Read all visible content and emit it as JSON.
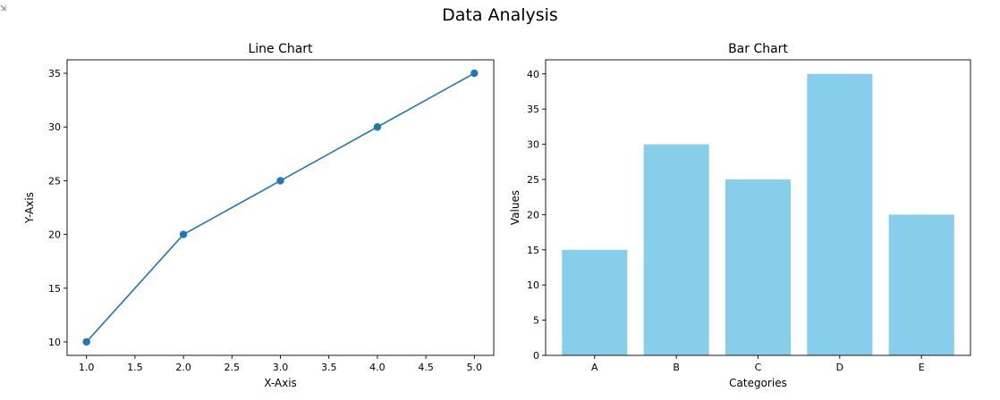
{
  "figure": {
    "title": "Data Analysis",
    "corner_icon": "output-indicator-icon",
    "corner_glyph": "⇲"
  },
  "chart_data": [
    {
      "type": "line",
      "title": "Line Chart",
      "xlabel": "X-Axis",
      "ylabel": "Y-Axis",
      "x": [
        1,
        2,
        3,
        4,
        5
      ],
      "series": [
        {
          "values": [
            10,
            20,
            25,
            30,
            35
          ],
          "color": "#1f77b4",
          "marker": "circle"
        }
      ],
      "xlim": [
        0.8,
        5.2
      ],
      "ylim": [
        8.75,
        36.25
      ],
      "xticks": [
        1.0,
        1.5,
        2.0,
        2.5,
        3.0,
        3.5,
        4.0,
        4.5,
        5.0
      ],
      "xtick_labels": [
        "1.0",
        "1.5",
        "2.0",
        "2.5",
        "3.0",
        "3.5",
        "4.0",
        "4.5",
        "5.0"
      ],
      "yticks": [
        10,
        15,
        20,
        25,
        30,
        35
      ],
      "ytick_labels": [
        "10",
        "15",
        "20",
        "25",
        "30",
        "35"
      ],
      "grid": false,
      "legend": false
    },
    {
      "type": "bar",
      "title": "Bar Chart",
      "xlabel": "Categories",
      "ylabel": "Values",
      "categories": [
        "A",
        "B",
        "C",
        "D",
        "E"
      ],
      "values": [
        15,
        30,
        25,
        40,
        20
      ],
      "color": "#87ceeb",
      "ylim": [
        0,
        42
      ],
      "yticks": [
        0,
        5,
        10,
        15,
        20,
        25,
        30,
        35,
        40
      ],
      "ytick_labels": [
        "0",
        "5",
        "10",
        "15",
        "20",
        "25",
        "30",
        "35",
        "40"
      ],
      "grid": false,
      "legend": false
    }
  ]
}
